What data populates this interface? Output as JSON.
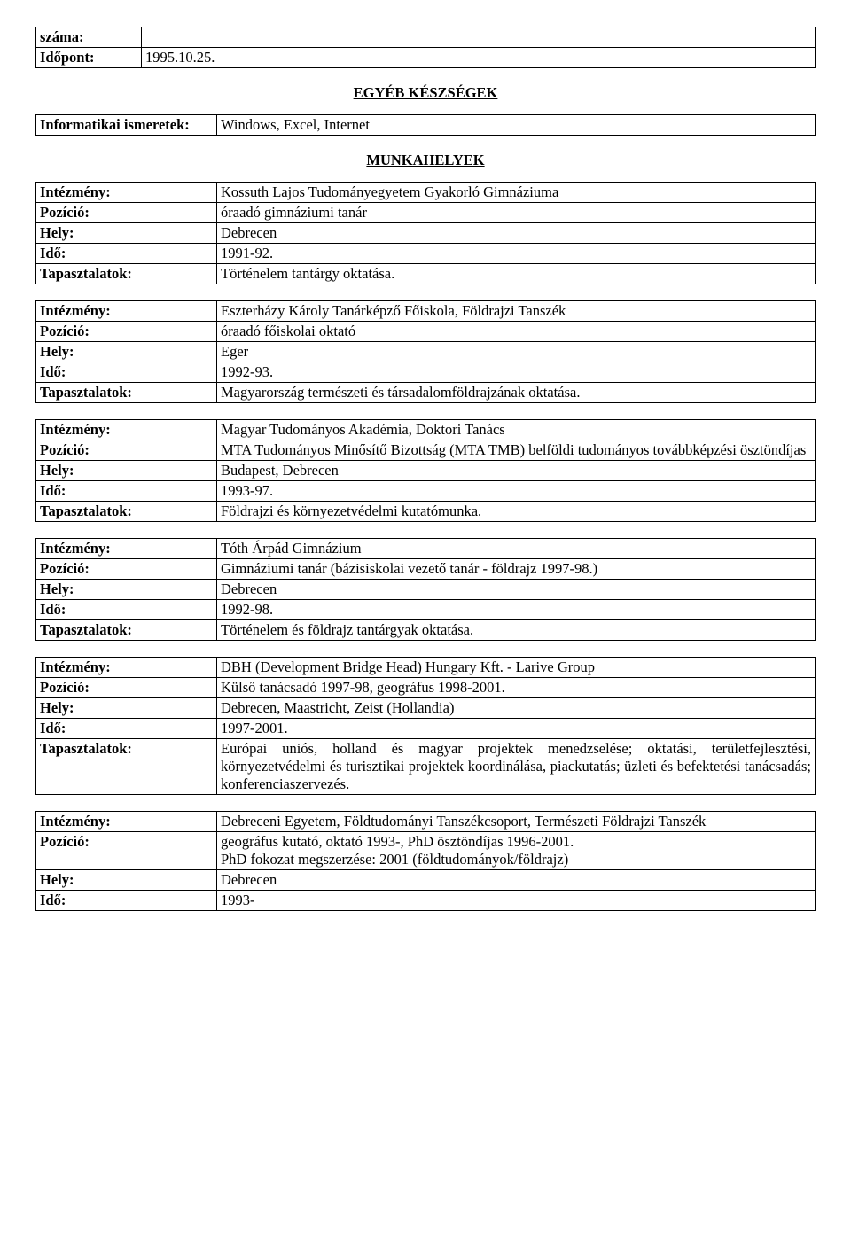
{
  "head": {
    "row0_label": "száma:",
    "row0_value": "",
    "row1_label": "Időpont:",
    "row1_value": "1995.10.25."
  },
  "sections": {
    "skills_title": "EGYÉB KÉSZSÉGEK",
    "jobs_title": "MUNKAHELYEK"
  },
  "it": {
    "label": "Informatikai ismeretek:",
    "value": "Windows, Excel, Internet"
  },
  "labels": {
    "institution": "Intézmény:",
    "position": "Pozíció:",
    "place": "Hely:",
    "time": "Idő:",
    "experience": "Tapasztalatok:"
  },
  "jobs": [
    {
      "institution": "Kossuth Lajos Tudományegyetem Gyakorló Gimnáziuma",
      "position": "óraadó gimnáziumi tanár",
      "place": "Debrecen",
      "time": "1991-92.",
      "experience": "Történelem tantárgy oktatása."
    },
    {
      "institution": "Eszterházy Károly Tanárképző Főiskola, Földrajzi Tanszék",
      "position": "óraadó főiskolai oktató",
      "place": "Eger",
      "time": "1992-93.",
      "experience": "Magyarország természeti és társadalomföldrajzának oktatása."
    },
    {
      "institution": "Magyar Tudományos Akadémia, Doktori Tanács",
      "position": "MTA Tudományos Minősítő Bizottság (MTA TMB) belföldi tudományos továbbképzési ösztöndíjas",
      "position_justify": true,
      "place": "Budapest, Debrecen",
      "time": "1993-97.",
      "experience": "Földrajzi és környezetvédelmi kutatómunka."
    },
    {
      "institution": "Tóth Árpád Gimnázium",
      "position": "Gimnáziumi tanár (bázisiskolai vezető tanár - földrajz 1997-98.)",
      "place": "Debrecen",
      "time": "1992-98.",
      "experience": "Történelem és földrajz tantárgyak oktatása."
    },
    {
      "institution": "DBH (Development Bridge Head) Hungary Kft. - Larive Group",
      "position": "Külső tanácsadó 1997-98, geográfus 1998-2001.",
      "place": "Debrecen, Maastricht, Zeist (Hollandia)",
      "time": "1997-2001.",
      "experience": "Európai uniós, holland és magyar projektek menedzselése; oktatási, területfejlesztési, környezetvédelmi és turisztikai projektek koordinálása, piackutatás; üzleti és befektetési tanácsadás; konferenciaszervezés.",
      "experience_justify": true
    },
    {
      "institution": "Debreceni Egyetem, Földtudományi Tanszékcsoport, Természeti Földrajzi Tanszék",
      "institution_justify": true,
      "position": "geográfus kutató, oktató 1993-, PhD ösztöndíjas 1996-2001.\nPhD fokozat megszerzése: 2001 (földtudományok/földrajz)",
      "place": "Debrecen",
      "time": "1993-",
      "experience": null
    }
  ]
}
